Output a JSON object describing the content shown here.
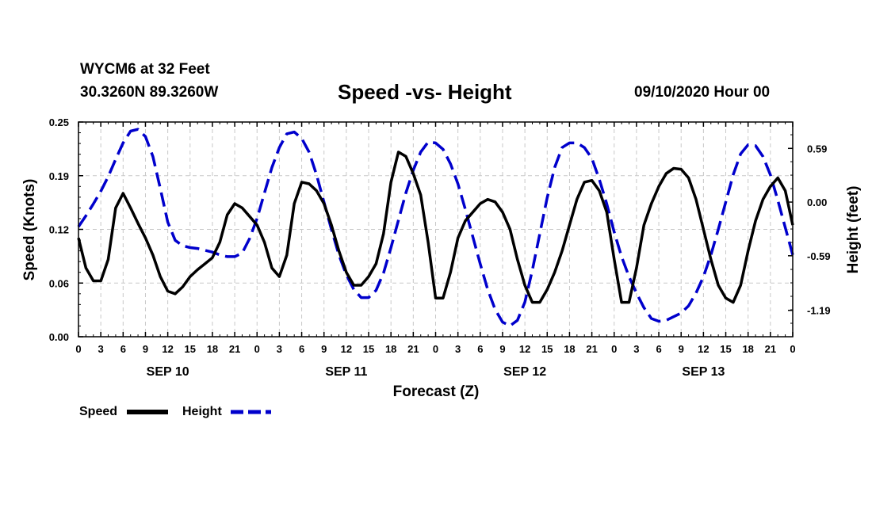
{
  "header": {
    "station_line": "WYCM6 at 32 Feet",
    "coords_line": "30.3260N 89.3260W",
    "title": "Speed -vs- Height",
    "datetime": "09/10/2020 Hour 00"
  },
  "chart_data": {
    "type": "line",
    "title": "Speed -vs- Height",
    "xlabel": "Forecast (Z)",
    "ylabel": "Speed (Knots)",
    "y2label": "Height (feet)",
    "x_hours_range": [
      0,
      96
    ],
    "x_tick_labels": [
      "0",
      "3",
      "6",
      "9",
      "12",
      "15",
      "18",
      "21",
      "0",
      "3",
      "6",
      "9",
      "12",
      "15",
      "18",
      "21",
      "0",
      "3",
      "6",
      "9",
      "12",
      "15",
      "18",
      "21",
      "0",
      "3",
      "6",
      "9",
      "12",
      "15",
      "18",
      "21",
      "0"
    ],
    "day_labels": [
      {
        "label": "SEP 10",
        "hour": 12
      },
      {
        "label": "SEP 11",
        "hour": 36
      },
      {
        "label": "SEP 12",
        "hour": 60
      },
      {
        "label": "SEP 13",
        "hour": 84
      }
    ],
    "ylim": [
      0,
      0.25
    ],
    "y_tick_labels": [
      "0.00",
      "0.06",
      "0.12",
      "0.19",
      "0.25"
    ],
    "y2lim": [
      -1.48,
      0.88
    ],
    "y2_tick_labels": [
      "0.59",
      "0.00",
      "-0.59",
      "-1.19"
    ],
    "y2_tick_values": [
      0.59,
      0.0,
      -0.59,
      -1.19
    ],
    "grid": true,
    "legend": [
      {
        "name": "Speed",
        "color": "#000000",
        "style": "solid"
      },
      {
        "name": "Height",
        "color": "#0000cc",
        "style": "dashed"
      }
    ],
    "series": [
      {
        "name": "Speed",
        "axis": "left",
        "color": "#000000",
        "x": [
          0,
          1,
          2,
          3,
          4,
          5,
          6,
          7,
          8,
          9,
          10,
          11,
          12,
          13,
          14,
          15,
          16,
          17,
          18,
          19,
          20,
          21,
          22,
          23,
          24,
          25,
          26,
          27,
          28,
          29,
          30,
          31,
          32,
          33,
          34,
          35,
          36,
          37,
          38,
          39,
          40,
          41,
          42,
          43,
          44,
          45,
          46,
          47,
          48,
          49,
          50,
          51,
          52,
          53,
          54,
          55,
          56,
          57,
          58,
          59,
          60,
          61,
          62,
          63,
          64,
          65,
          66,
          67,
          68,
          69,
          70,
          71,
          72,
          73,
          74,
          75,
          76,
          77,
          78,
          79,
          80,
          81,
          82,
          83,
          84,
          85,
          86,
          87,
          88,
          89,
          90,
          91,
          92,
          93,
          94,
          95,
          96
        ],
        "values": [
          0.115,
          0.08,
          0.065,
          0.065,
          0.09,
          0.15,
          0.167,
          0.15,
          0.132,
          0.115,
          0.095,
          0.07,
          0.053,
          0.05,
          0.058,
          0.07,
          0.078,
          0.085,
          0.092,
          0.11,
          0.142,
          0.155,
          0.15,
          0.14,
          0.13,
          0.11,
          0.08,
          0.07,
          0.095,
          0.155,
          0.18,
          0.178,
          0.17,
          0.155,
          0.13,
          0.1,
          0.075,
          0.06,
          0.06,
          0.07,
          0.085,
          0.12,
          0.18,
          0.215,
          0.21,
          0.19,
          0.165,
          0.11,
          0.045,
          0.045,
          0.075,
          0.115,
          0.135,
          0.145,
          0.155,
          0.16,
          0.157,
          0.145,
          0.125,
          0.09,
          0.06,
          0.04,
          0.04,
          0.055,
          0.075,
          0.1,
          0.13,
          0.16,
          0.18,
          0.182,
          0.17,
          0.145,
          0.09,
          0.04,
          0.04,
          0.08,
          0.13,
          0.155,
          0.175,
          0.19,
          0.196,
          0.195,
          0.185,
          0.16,
          0.125,
          0.09,
          0.06,
          0.045,
          0.04,
          0.06,
          0.1,
          0.135,
          0.16,
          0.175,
          0.185,
          0.17,
          0.13
        ]
      },
      {
        "name": "Height",
        "axis": "right",
        "color": "#0000cc",
        "x": [
          0,
          1,
          2,
          3,
          4,
          5,
          6,
          7,
          8,
          9,
          10,
          11,
          12,
          13,
          14,
          15,
          16,
          17,
          18,
          19,
          20,
          21,
          22,
          23,
          24,
          25,
          26,
          27,
          28,
          29,
          30,
          31,
          32,
          33,
          34,
          35,
          36,
          37,
          38,
          39,
          40,
          41,
          42,
          43,
          44,
          45,
          46,
          47,
          48,
          49,
          50,
          51,
          52,
          53,
          54,
          55,
          56,
          57,
          58,
          59,
          60,
          61,
          62,
          63,
          64,
          65,
          66,
          67,
          68,
          69,
          70,
          71,
          72,
          73,
          74,
          75,
          76,
          77,
          78,
          79,
          80,
          81,
          82,
          83,
          84,
          85,
          86,
          87,
          88,
          89,
          90,
          91,
          92,
          93,
          94,
          95,
          96
        ],
        "values": [
          -0.27,
          -0.15,
          -0.02,
          0.12,
          0.28,
          0.47,
          0.65,
          0.78,
          0.8,
          0.72,
          0.5,
          0.15,
          -0.22,
          -0.42,
          -0.48,
          -0.5,
          -0.51,
          -0.53,
          -0.55,
          -0.58,
          -0.6,
          -0.6,
          -0.56,
          -0.4,
          -0.18,
          0.1,
          0.38,
          0.6,
          0.75,
          0.77,
          0.7,
          0.55,
          0.3,
          0.0,
          -0.3,
          -0.58,
          -0.8,
          -0.96,
          -1.05,
          -1.05,
          -0.97,
          -0.78,
          -0.5,
          -0.2,
          0.1,
          0.35,
          0.55,
          0.66,
          0.65,
          0.58,
          0.42,
          0.2,
          -0.08,
          -0.38,
          -0.68,
          -0.96,
          -1.18,
          -1.32,
          -1.36,
          -1.3,
          -1.1,
          -0.75,
          -0.35,
          0.05,
          0.38,
          0.6,
          0.65,
          0.65,
          0.6,
          0.48,
          0.25,
          -0.02,
          -0.33,
          -0.6,
          -0.82,
          -1.0,
          -1.16,
          -1.28,
          -1.31,
          -1.3,
          -1.26,
          -1.22,
          -1.14,
          -1.0,
          -0.82,
          -0.58,
          -0.3,
          0.0,
          0.3,
          0.53,
          0.63,
          0.62,
          0.5,
          0.3,
          0.02,
          -0.28,
          -0.58
        ]
      }
    ]
  }
}
